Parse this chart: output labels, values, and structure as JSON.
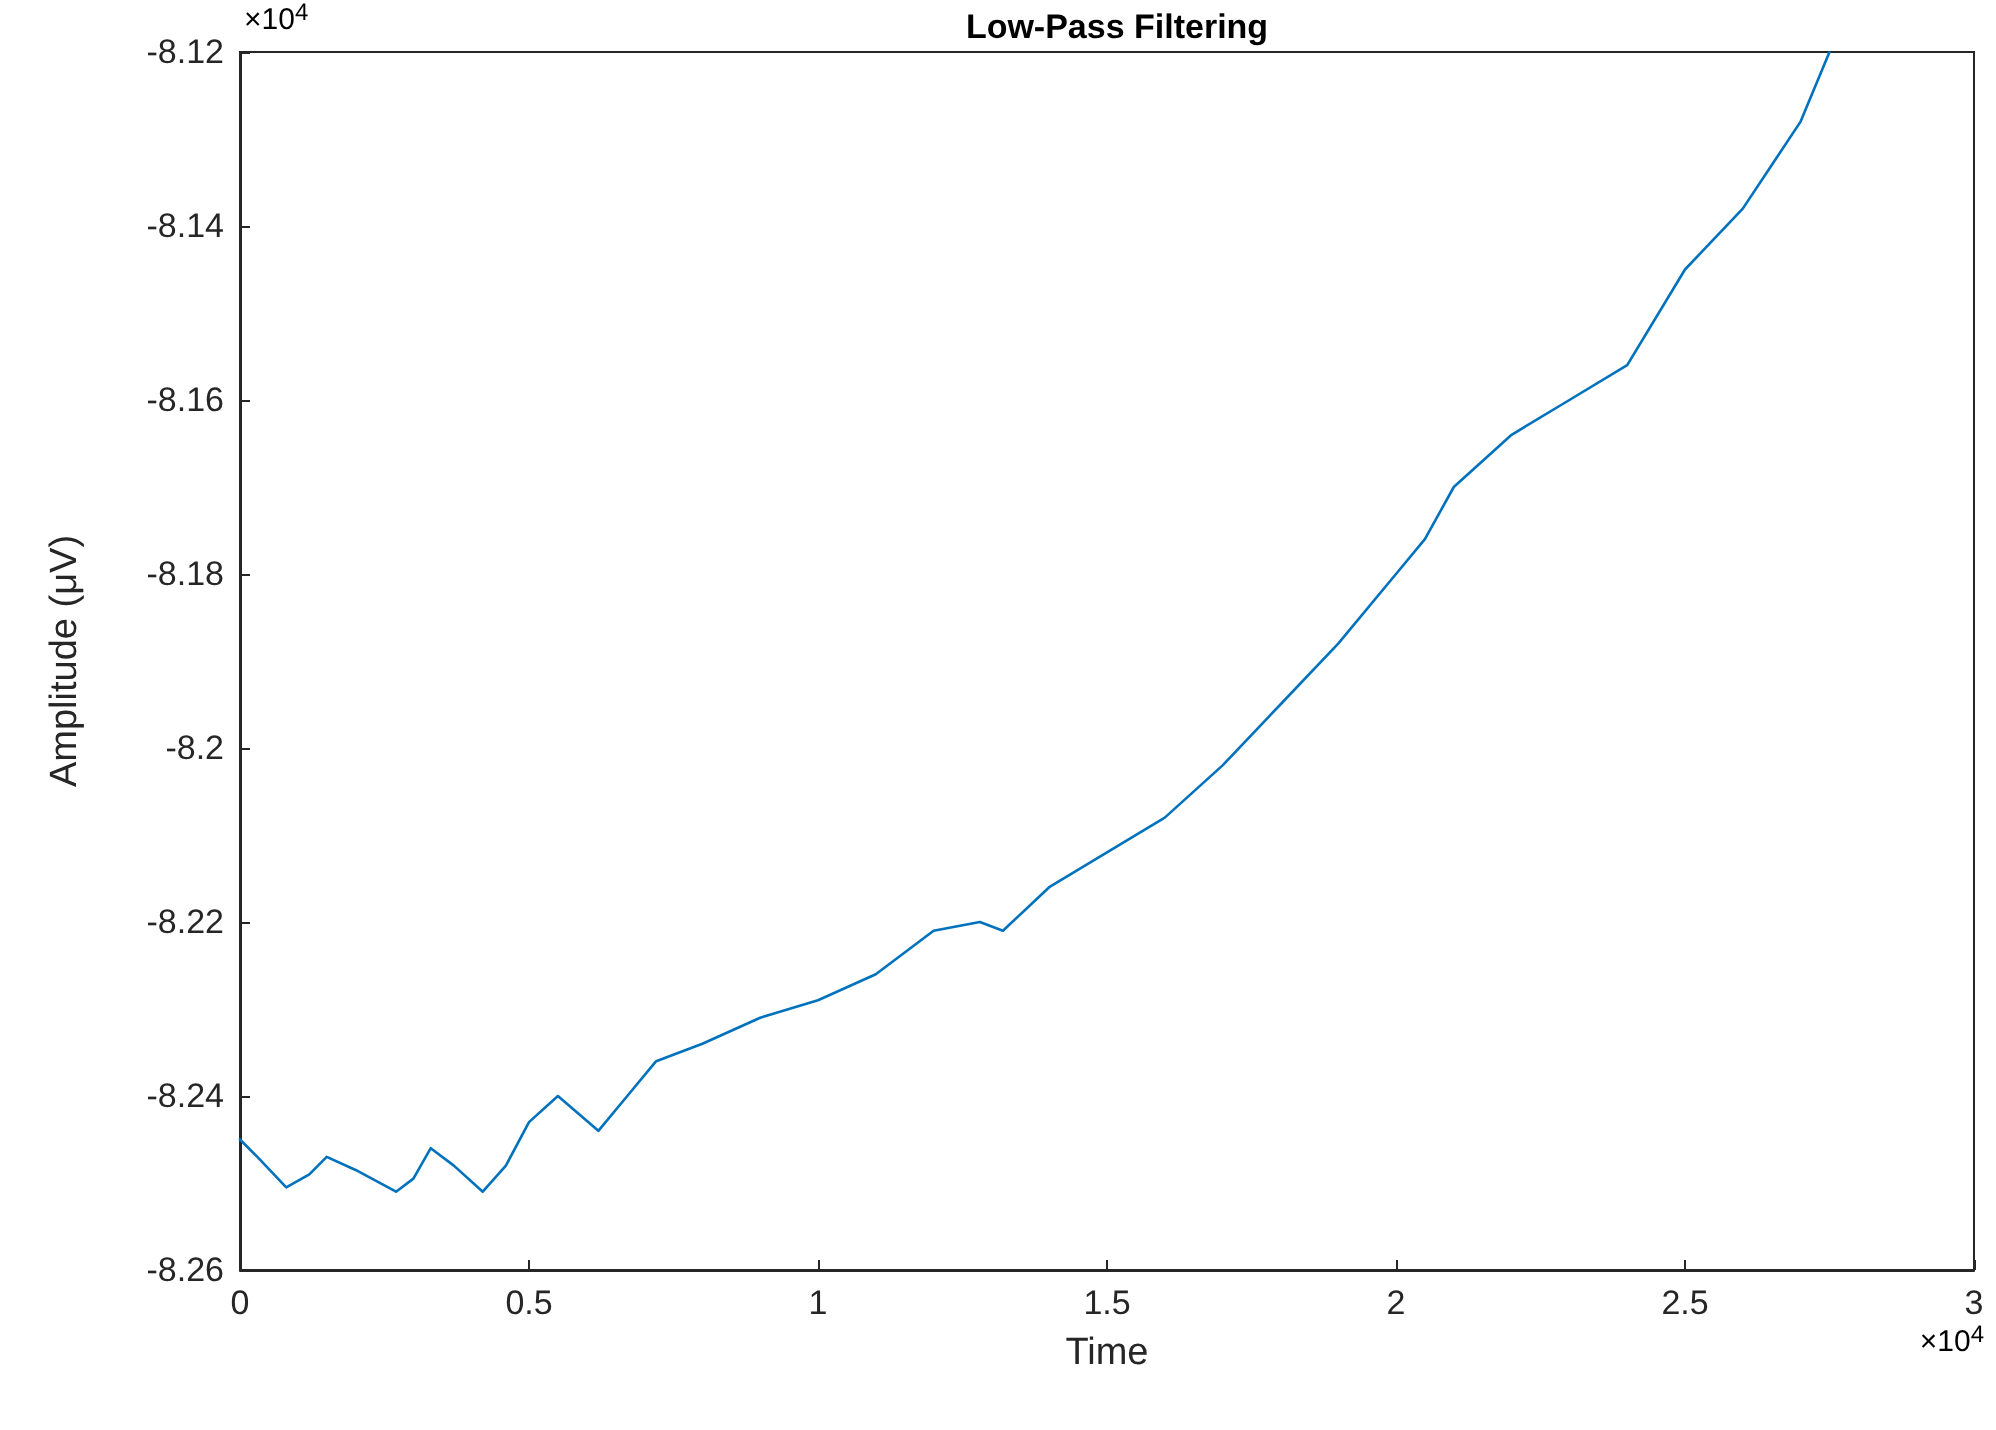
{
  "chart_data": {
    "type": "line",
    "title": "Low-Pass Filtering",
    "xlabel": "Time",
    "ylabel": "Amplitude (μV)",
    "annotations": [
      "×10$^{4}$",
      "×10$^{4}$"
    ],
    "x": [
      0,
      0.03,
      0.08,
      0.12,
      0.15,
      0.2,
      0.27,
      0.3,
      0.33,
      0.37,
      0.42,
      0.46,
      0.5,
      0.55,
      0.62,
      0.67,
      0.72,
      0.8,
      0.9,
      1.0,
      1.1,
      1.2,
      1.28,
      1.32,
      1.4,
      1.5,
      1.6,
      1.7,
      1.8,
      1.9,
      2.0,
      2.05,
      2.1,
      2.2,
      2.3,
      2.4,
      2.5,
      2.6,
      2.7,
      2.75
    ],
    "series": [
      {
        "color": "#0072bd",
        "values": [
          -8.245,
          -8.247,
          -8.2505,
          -8.249,
          -8.247,
          -8.2485,
          -8.251,
          -8.2495,
          -8.246,
          -8.248,
          -8.251,
          -8.248,
          -8.243,
          -8.24,
          -8.244,
          -8.24,
          -8.236,
          -8.234,
          -8.231,
          -8.229,
          -8.226,
          -8.221,
          -8.22,
          -8.221,
          -8.216,
          -8.212,
          -8.208,
          -8.202,
          -8.195,
          -8.188,
          -8.18,
          -8.176,
          -8.17,
          -8.164,
          -8.16,
          -8.156,
          -8.145,
          -8.138,
          -8.128,
          -8.12
        ]
      }
    ],
    "xlim": [
      0,
      3
    ],
    "xticks": [
      0,
      0.5,
      1,
      1.5,
      2,
      2.5,
      3
    ],
    "ylim": [
      -8.26,
      -8.12
    ],
    "yticks": [
      -8.26,
      -8.24,
      -8.22,
      -8.2,
      -8.18,
      -8.16,
      -8.14,
      -8.12
    ],
    "grid": false,
    "marker": "none",
    "line_style": "solid"
  }
}
